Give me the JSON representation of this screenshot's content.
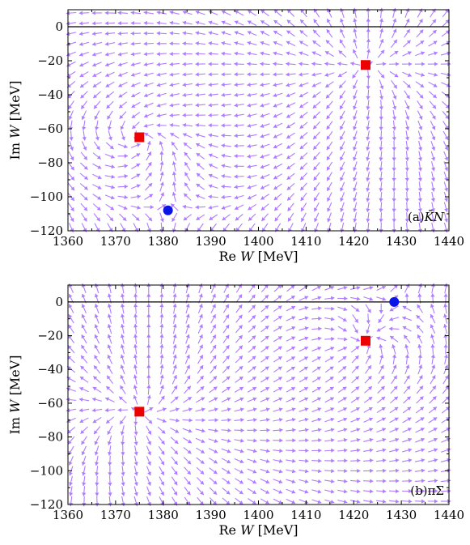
{
  "colors": {
    "arrow": "#b07cff",
    "kbar_pole": "#ee0000",
    "pole_circle": "#0a14e6",
    "axis": "#000000"
  },
  "chart_data": [
    {
      "type": "vector-field",
      "panel_label": "(a)$\\bar{K}N$",
      "xlabel": "Re W [MeV]",
      "ylabel": "Im W [MeV]",
      "xlim": [
        1360,
        1440
      ],
      "ylim": [
        -120,
        10
      ],
      "xticks": [
        "1360",
        "1370",
        "1380",
        "1390",
        "1400",
        "1410",
        "1420",
        "1430",
        "1440"
      ],
      "yticks": [
        "0",
        "−20",
        "−40",
        "−60",
        "−80",
        "−100",
        "−120"
      ],
      "square_markers": [
        {
          "x": 1375,
          "y": -65
        },
        {
          "x": 1422.5,
          "y": -22.5
        }
      ],
      "circle_markers": [
        {
          "x": 1381,
          "y": -108
        }
      ],
      "grid": false
    },
    {
      "type": "vector-field",
      "panel_label": "(b)πΣ",
      "xlabel": "Re W [MeV]",
      "ylabel": "Im W [MeV]",
      "xlim": [
        1360,
        1440
      ],
      "ylim": [
        -120,
        10
      ],
      "xticks": [
        "1360",
        "1370",
        "1380",
        "1390",
        "1400",
        "1410",
        "1420",
        "1430",
        "1440"
      ],
      "yticks": [
        "0",
        "−20",
        "−40",
        "−60",
        "−80",
        "−100",
        "−120"
      ],
      "square_markers": [
        {
          "x": 1375,
          "y": -65
        },
        {
          "x": 1422.5,
          "y": -23
        }
      ],
      "circle_markers": [
        {
          "x": 1428.5,
          "y": 0
        }
      ],
      "grid": false
    }
  ]
}
